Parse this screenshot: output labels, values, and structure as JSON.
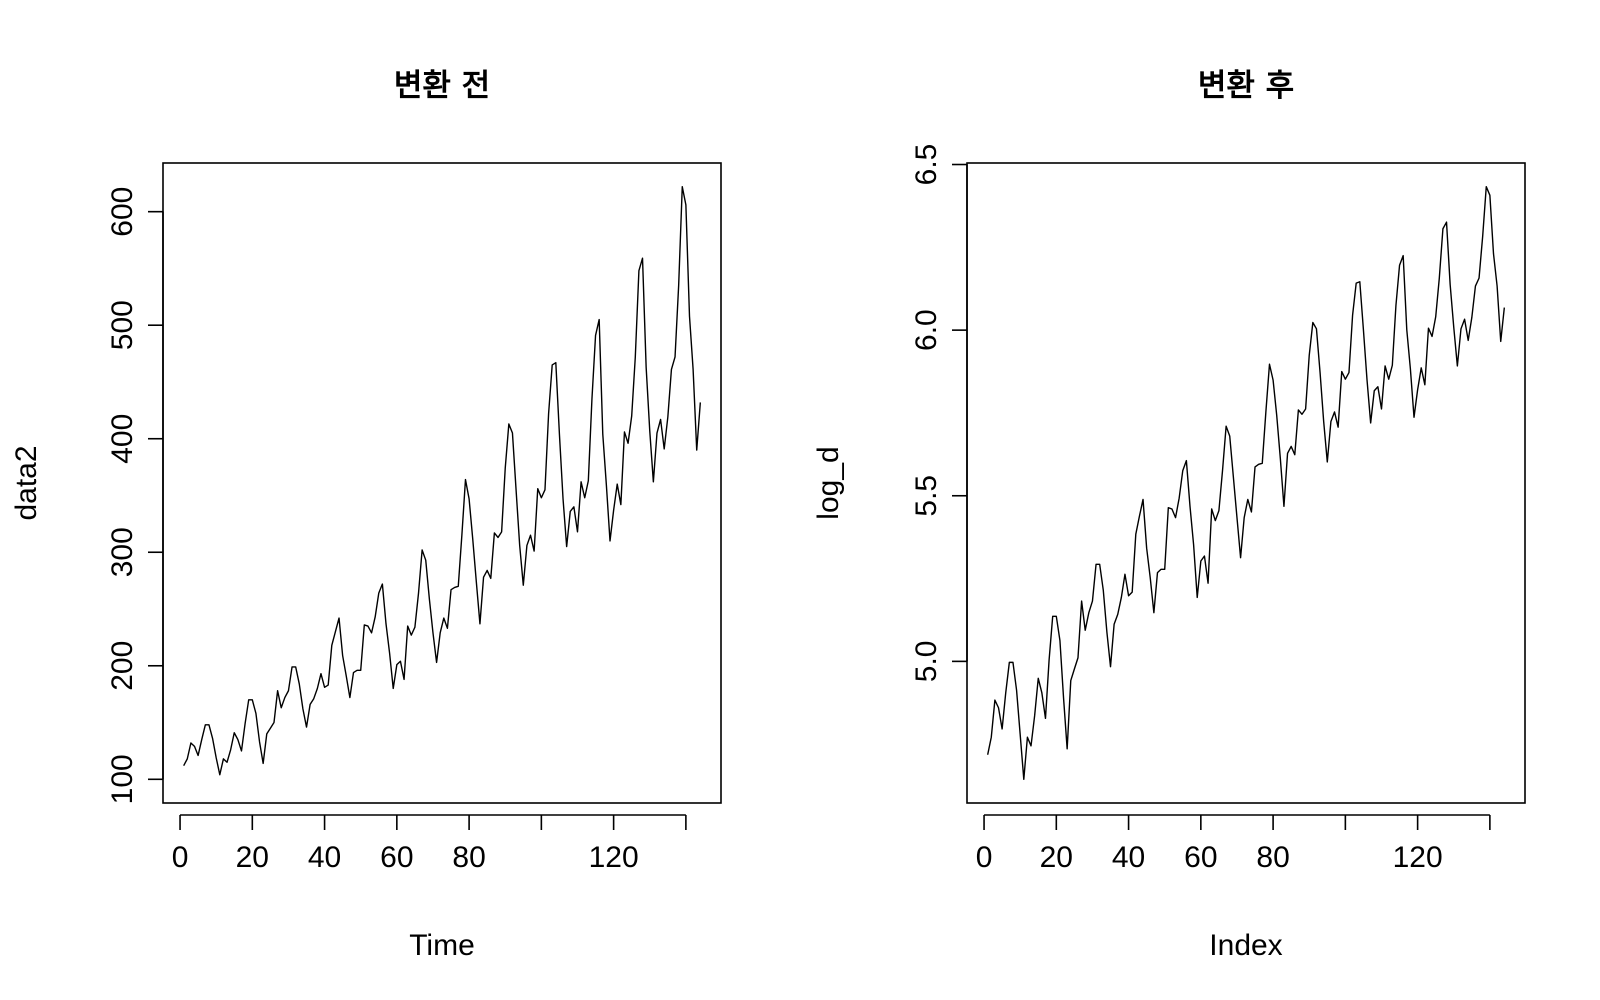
{
  "chart_data": [
    {
      "type": "line",
      "title": "변환 전",
      "xlabel": "Time",
      "ylabel": "data2",
      "xlim": [
        1,
        144
      ],
      "ylim": [
        100,
        622
      ],
      "x_ticks": [
        0,
        20,
        40,
        60,
        80,
        100,
        120,
        140
      ],
      "x_tick_labels": [
        "0",
        "20",
        "40",
        "60",
        "80",
        "",
        "120",
        ""
      ],
      "y_ticks": [
        100,
        200,
        300,
        400,
        500,
        600
      ],
      "y_tick_labels": [
        "100",
        "200",
        "300",
        "400",
        "500",
        "600"
      ],
      "color": "#000000",
      "grid": false,
      "series": [
        {
          "values": [
            112,
            118,
            132,
            129,
            121,
            135,
            148,
            148,
            136,
            119,
            104,
            118,
            115,
            126,
            141,
            135,
            125,
            149,
            170,
            170,
            158,
            133,
            114,
            140,
            145,
            150,
            178,
            163,
            172,
            178,
            199,
            199,
            184,
            162,
            146,
            166,
            171,
            180,
            193,
            181,
            183,
            218,
            230,
            242,
            209,
            191,
            172,
            194,
            196,
            196,
            236,
            235,
            229,
            243,
            264,
            272,
            237,
            211,
            180,
            201,
            204,
            188,
            235,
            227,
            234,
            264,
            302,
            293,
            259,
            229,
            203,
            229,
            242,
            233,
            267,
            269,
            270,
            315,
            364,
            347,
            312,
            274,
            237,
            278,
            284,
            277,
            317,
            313,
            318,
            374,
            413,
            405,
            355,
            306,
            271,
            306,
            315,
            301,
            356,
            348,
            355,
            422,
            465,
            467,
            404,
            347,
            305,
            336,
            340,
            318,
            362,
            348,
            363,
            435,
            491,
            505,
            404,
            359,
            310,
            337,
            360,
            342,
            406,
            396,
            420,
            472,
            548,
            559,
            463,
            407,
            362,
            405,
            417,
            391,
            419,
            461,
            472,
            535,
            622,
            606,
            508,
            461,
            390,
            432
          ]
        }
      ]
    },
    {
      "type": "line",
      "title": "변환 후",
      "xlabel": "Index",
      "ylabel": "log_d",
      "xlim": [
        1,
        144
      ],
      "ylim": [
        4.644,
        6.433
      ],
      "x_ticks": [
        0,
        20,
        40,
        60,
        80,
        100,
        120,
        140
      ],
      "x_tick_labels": [
        "0",
        "20",
        "40",
        "60",
        "80",
        "",
        "120",
        ""
      ],
      "y_ticks": [
        5.0,
        5.5,
        6.0,
        6.5
      ],
      "y_tick_labels": [
        "5.0",
        "5.5",
        "6.0",
        "6.5"
      ],
      "color": "#000000",
      "grid": false,
      "series": [
        {
          "values": [
            4.718,
            4.771,
            4.883,
            4.86,
            4.796,
            4.905,
            4.997,
            4.997,
            4.913,
            4.779,
            4.644,
            4.771,
            4.745,
            4.836,
            4.949,
            4.905,
            4.828,
            5.004,
            5.136,
            5.136,
            5.063,
            4.89,
            4.736,
            4.942,
            4.977,
            5.011,
            5.182,
            5.094,
            5.147,
            5.182,
            5.293,
            5.293,
            5.215,
            5.088,
            4.984,
            5.112,
            5.142,
            5.193,
            5.263,
            5.198,
            5.209,
            5.384,
            5.438,
            5.489,
            5.342,
            5.252,
            5.147,
            5.268,
            5.278,
            5.278,
            5.464,
            5.46,
            5.434,
            5.493,
            5.576,
            5.606,
            5.468,
            5.352,
            5.193,
            5.303,
            5.318,
            5.236,
            5.46,
            5.425,
            5.455,
            5.576,
            5.71,
            5.68,
            5.557,
            5.434,
            5.313,
            5.434,
            5.489,
            5.451,
            5.587,
            5.595,
            5.598,
            5.753,
            5.897,
            5.849,
            5.743,
            5.613,
            5.468,
            5.628,
            5.649,
            5.624,
            5.759,
            5.746,
            5.762,
            5.924,
            6.023,
            6.004,
            5.872,
            5.724,
            5.602,
            5.724,
            5.753,
            5.707,
            5.875,
            5.852,
            5.872,
            6.045,
            6.142,
            6.146,
            6.001,
            5.849,
            5.72,
            5.817,
            5.829,
            5.762,
            5.892,
            5.852,
            5.894,
            6.075,
            6.196,
            6.225,
            6.001,
            5.883,
            5.737,
            5.82,
            5.886,
            5.835,
            6.006,
            5.981,
            6.04,
            6.157,
            6.306,
            6.326,
            6.138,
            6.009,
            5.892,
            6.004,
            6.033,
            5.969,
            6.038,
            6.133,
            6.157,
            6.283,
            6.433,
            6.407,
            6.231,
            6.133,
            5.966,
            6.068
          ]
        }
      ]
    }
  ]
}
